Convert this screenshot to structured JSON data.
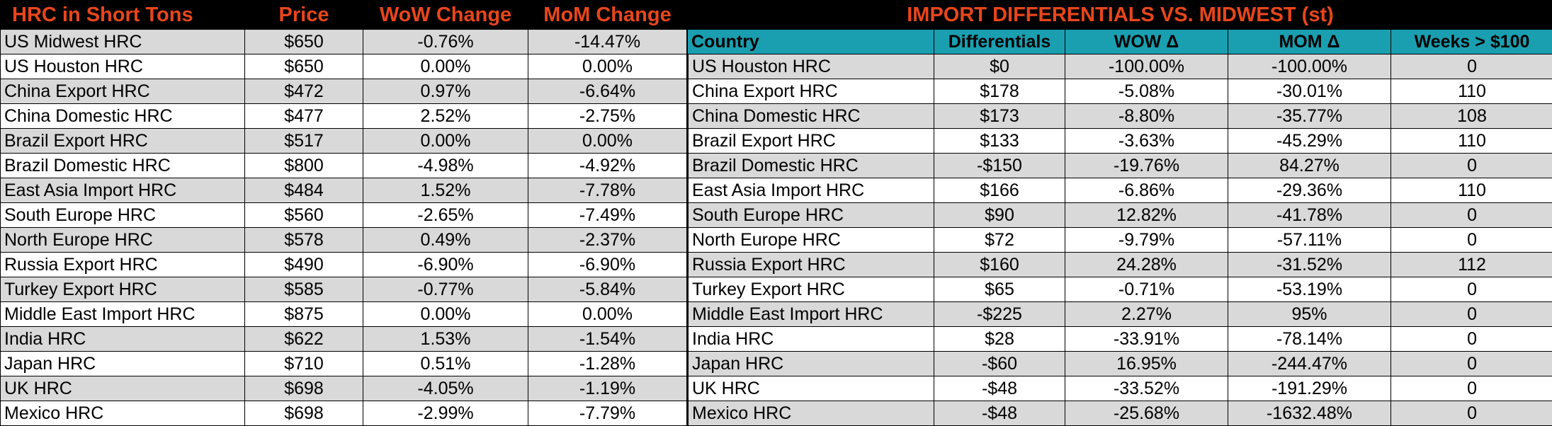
{
  "left": {
    "headers": [
      "HRC in Short Tons",
      "Price",
      "WoW Change",
      "MoM Change"
    ],
    "rows": [
      [
        "US Midwest HRC",
        "$650",
        "-0.76%",
        "-14.47%"
      ],
      [
        "US Houston HRC",
        "$650",
        "0.00%",
        "0.00%"
      ],
      [
        "China Export HRC",
        "$472",
        "0.97%",
        "-6.64%"
      ],
      [
        "China Domestic HRC",
        "$477",
        "2.52%",
        "-2.75%"
      ],
      [
        "Brazil Export HRC",
        "$517",
        "0.00%",
        "0.00%"
      ],
      [
        "Brazil Domestic HRC",
        "$800",
        "-4.98%",
        "-4.92%"
      ],
      [
        "East Asia Import HRC",
        "$484",
        "1.52%",
        "-7.78%"
      ],
      [
        "South Europe HRC",
        "$560",
        "-2.65%",
        "-7.49%"
      ],
      [
        "North Europe HRC",
        "$578",
        "0.49%",
        "-2.37%"
      ],
      [
        "Russia Export HRC",
        "$490",
        "-6.90%",
        "-6.90%"
      ],
      [
        "Turkey Export HRC",
        "$585",
        "-0.77%",
        "-5.84%"
      ],
      [
        "Middle East Import HRC",
        "$875",
        "0.00%",
        "0.00%"
      ],
      [
        "India HRC",
        "$622",
        "1.53%",
        "-1.54%"
      ],
      [
        "Japan HRC",
        "$710",
        "0.51%",
        "-1.28%"
      ],
      [
        "UK HRC",
        "$698",
        "-4.05%",
        "-1.19%"
      ],
      [
        "Mexico HRC",
        "$698",
        "-2.99%",
        "-7.79%"
      ]
    ]
  },
  "right": {
    "title": "IMPORT DIFFERENTIALS VS. MIDWEST (st)",
    "headers": [
      "Country",
      "Differentials",
      "WOW Δ",
      "MOM Δ",
      "Weeks > $100"
    ],
    "rows": [
      [
        "US Houston HRC",
        "$0",
        "-100.00%",
        "-100.00%",
        "0"
      ],
      [
        "China Export HRC",
        "$178",
        "-5.08%",
        "-30.01%",
        "110"
      ],
      [
        "China Domestic HRC",
        "$173",
        "-8.80%",
        "-35.77%",
        "108"
      ],
      [
        "Brazil Export HRC",
        "$133",
        "-3.63%",
        "-45.29%",
        "110"
      ],
      [
        "Brazil Domestic HRC",
        "-$150",
        "-19.76%",
        "84.27%",
        "0"
      ],
      [
        "East Asia Import HRC",
        "$166",
        "-6.86%",
        "-29.36%",
        "110"
      ],
      [
        "South Europe HRC",
        "$90",
        "12.82%",
        "-41.78%",
        "0"
      ],
      [
        "North Europe HRC",
        "$72",
        "-9.79%",
        "-57.11%",
        "0"
      ],
      [
        "Russia Export HRC",
        "$160",
        "24.28%",
        "-31.52%",
        "112"
      ],
      [
        "Turkey Export HRC",
        "$65",
        "-0.71%",
        "-53.19%",
        "0"
      ],
      [
        "Middle East Import HRC",
        "-$225",
        "2.27%",
        "95%",
        "0"
      ],
      [
        "India HRC",
        "$28",
        "-33.91%",
        "-78.14%",
        "0"
      ],
      [
        "Japan HRC",
        "-$60",
        "16.95%",
        "-244.47%",
        "0"
      ],
      [
        "UK HRC",
        "-$48",
        "-33.52%",
        "-191.29%",
        "0"
      ],
      [
        "Mexico HRC",
        "-$48",
        "-25.68%",
        "-1632.48%",
        "0"
      ]
    ]
  },
  "colors": {
    "header_bg": "#000000",
    "header_text": "#e8461c",
    "colheader_bg": "#1a9fb0",
    "shade_row": "#d9d9d9"
  }
}
